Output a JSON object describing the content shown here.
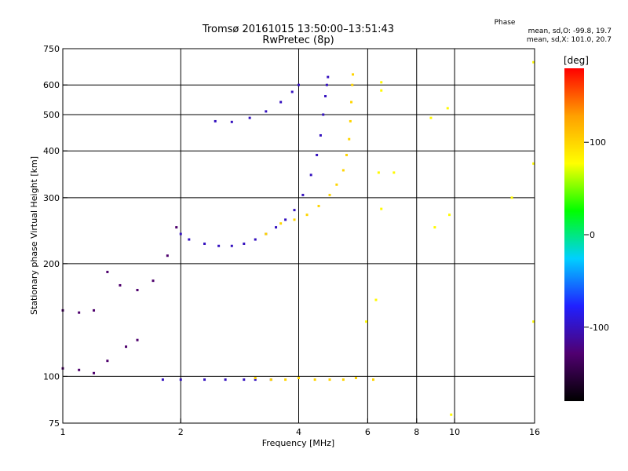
{
  "chart_data": {
    "type": "scatter",
    "title": "Tromsø 20161015 13:50:00–13:51:43",
    "subtitle": "RwPretec (8p)",
    "xlabel": "Frequency [MHz]",
    "ylabel": "Stationary phase Virtual Height [km]",
    "x_scale": "log",
    "y_scale": "log",
    "xlim": [
      1,
      16
    ],
    "ylim": [
      75,
      750
    ],
    "x_ticks": [
      1,
      2,
      4,
      6,
      8,
      10,
      16
    ],
    "y_ticks": [
      75,
      100,
      200,
      300,
      400,
      500,
      600,
      750
    ],
    "x_gridlines": [
      2,
      4,
      6,
      8,
      10
    ],
    "y_gridlines": [
      100,
      200,
      300,
      400,
      500,
      600
    ],
    "grid": true,
    "stats": {
      "heading": "Phase",
      "line_o": "mean, sd,O: -99.8, 19.7",
      "line_x": "mean, sd,X: 101.0, 20.7"
    },
    "colorbar": {
      "label": "[deg]",
      "range": [
        -180,
        180
      ],
      "ticks": [
        100,
        0,
        -100
      ],
      "palette": [
        "#000000",
        "#500070",
        "#2020ff",
        "#00d0ff",
        "#00ff00",
        "#ffff00",
        "#ffa000",
        "#ff0000"
      ]
    },
    "series": [
      {
        "group": "O-trace F2 (blue)",
        "phase": -100,
        "points": [
          [
            2.0,
            240
          ],
          [
            2.1,
            232
          ],
          [
            2.3,
            226
          ],
          [
            2.5,
            223
          ],
          [
            2.7,
            223
          ],
          [
            2.9,
            226
          ],
          [
            3.1,
            232
          ],
          [
            3.3,
            240
          ],
          [
            3.5,
            250
          ],
          [
            3.7,
            262
          ],
          [
            3.9,
            278
          ],
          [
            4.1,
            305
          ],
          [
            4.3,
            345
          ],
          [
            4.45,
            390
          ],
          [
            4.55,
            440
          ],
          [
            4.62,
            500
          ],
          [
            4.68,
            560
          ],
          [
            4.72,
            600
          ],
          [
            4.75,
            630
          ]
        ]
      },
      {
        "group": "X-trace F2 (yellow)",
        "phase": 100,
        "points": [
          [
            3.3,
            240
          ],
          [
            3.6,
            256
          ],
          [
            3.9,
            262
          ],
          [
            4.2,
            270
          ],
          [
            4.5,
            285
          ],
          [
            4.8,
            305
          ],
          [
            5.0,
            325
          ],
          [
            5.2,
            355
          ],
          [
            5.3,
            390
          ],
          [
            5.38,
            430
          ],
          [
            5.42,
            480
          ],
          [
            5.45,
            540
          ],
          [
            5.48,
            600
          ],
          [
            5.5,
            640
          ]
        ]
      },
      {
        "group": "F1 upper trace",
        "phase": -100,
        "points": [
          [
            2.45,
            480
          ],
          [
            2.7,
            478
          ],
          [
            3.0,
            490
          ],
          [
            3.3,
            510
          ],
          [
            3.6,
            540
          ],
          [
            3.85,
            575
          ],
          [
            4.0,
            600
          ]
        ]
      },
      {
        "group": "E-layer trace",
        "phase": -100,
        "points": [
          [
            1.8,
            98
          ],
          [
            2.0,
            98
          ],
          [
            2.3,
            98
          ],
          [
            2.6,
            98
          ],
          [
            2.9,
            98
          ],
          [
            3.1,
            98
          ],
          [
            3.4,
            98
          ]
        ]
      },
      {
        "group": "E-layer trace mixed",
        "phase": 100,
        "points": [
          [
            3.1,
            99
          ],
          [
            3.4,
            98
          ],
          [
            3.7,
            98
          ],
          [
            4.0,
            99
          ],
          [
            4.4,
            98
          ],
          [
            4.8,
            98
          ],
          [
            5.2,
            98
          ],
          [
            5.6,
            99
          ],
          [
            6.2,
            98
          ]
        ]
      },
      {
        "group": "Spread clusters",
        "phase": -130,
        "points": [
          [
            1.0,
            150
          ],
          [
            1.1,
            148
          ],
          [
            1.2,
            150
          ],
          [
            1.3,
            190
          ],
          [
            1.4,
            175
          ],
          [
            1.55,
            170
          ],
          [
            1.7,
            180
          ],
          [
            1.85,
            210
          ],
          [
            1.95,
            250
          ],
          [
            1.0,
            105
          ],
          [
            1.1,
            104
          ],
          [
            1.2,
            102
          ],
          [
            1.3,
            110
          ],
          [
            1.45,
            120
          ],
          [
            1.55,
            125
          ]
        ]
      },
      {
        "group": "Sparse points",
        "phase": 80,
        "points": [
          [
            6.5,
            610
          ],
          [
            6.5,
            580
          ],
          [
            6.4,
            350
          ],
          [
            6.5,
            280
          ],
          [
            7.0,
            350
          ],
          [
            6.3,
            160
          ],
          [
            5.95,
            140
          ],
          [
            8.7,
            490
          ],
          [
            8.9,
            250
          ],
          [
            9.6,
            520
          ],
          [
            9.7,
            270
          ],
          [
            9.8,
            79
          ],
          [
            14.0,
            300
          ],
          [
            15.9,
            690
          ],
          [
            15.9,
            370
          ],
          [
            15.9,
            140
          ]
        ]
      }
    ]
  }
}
